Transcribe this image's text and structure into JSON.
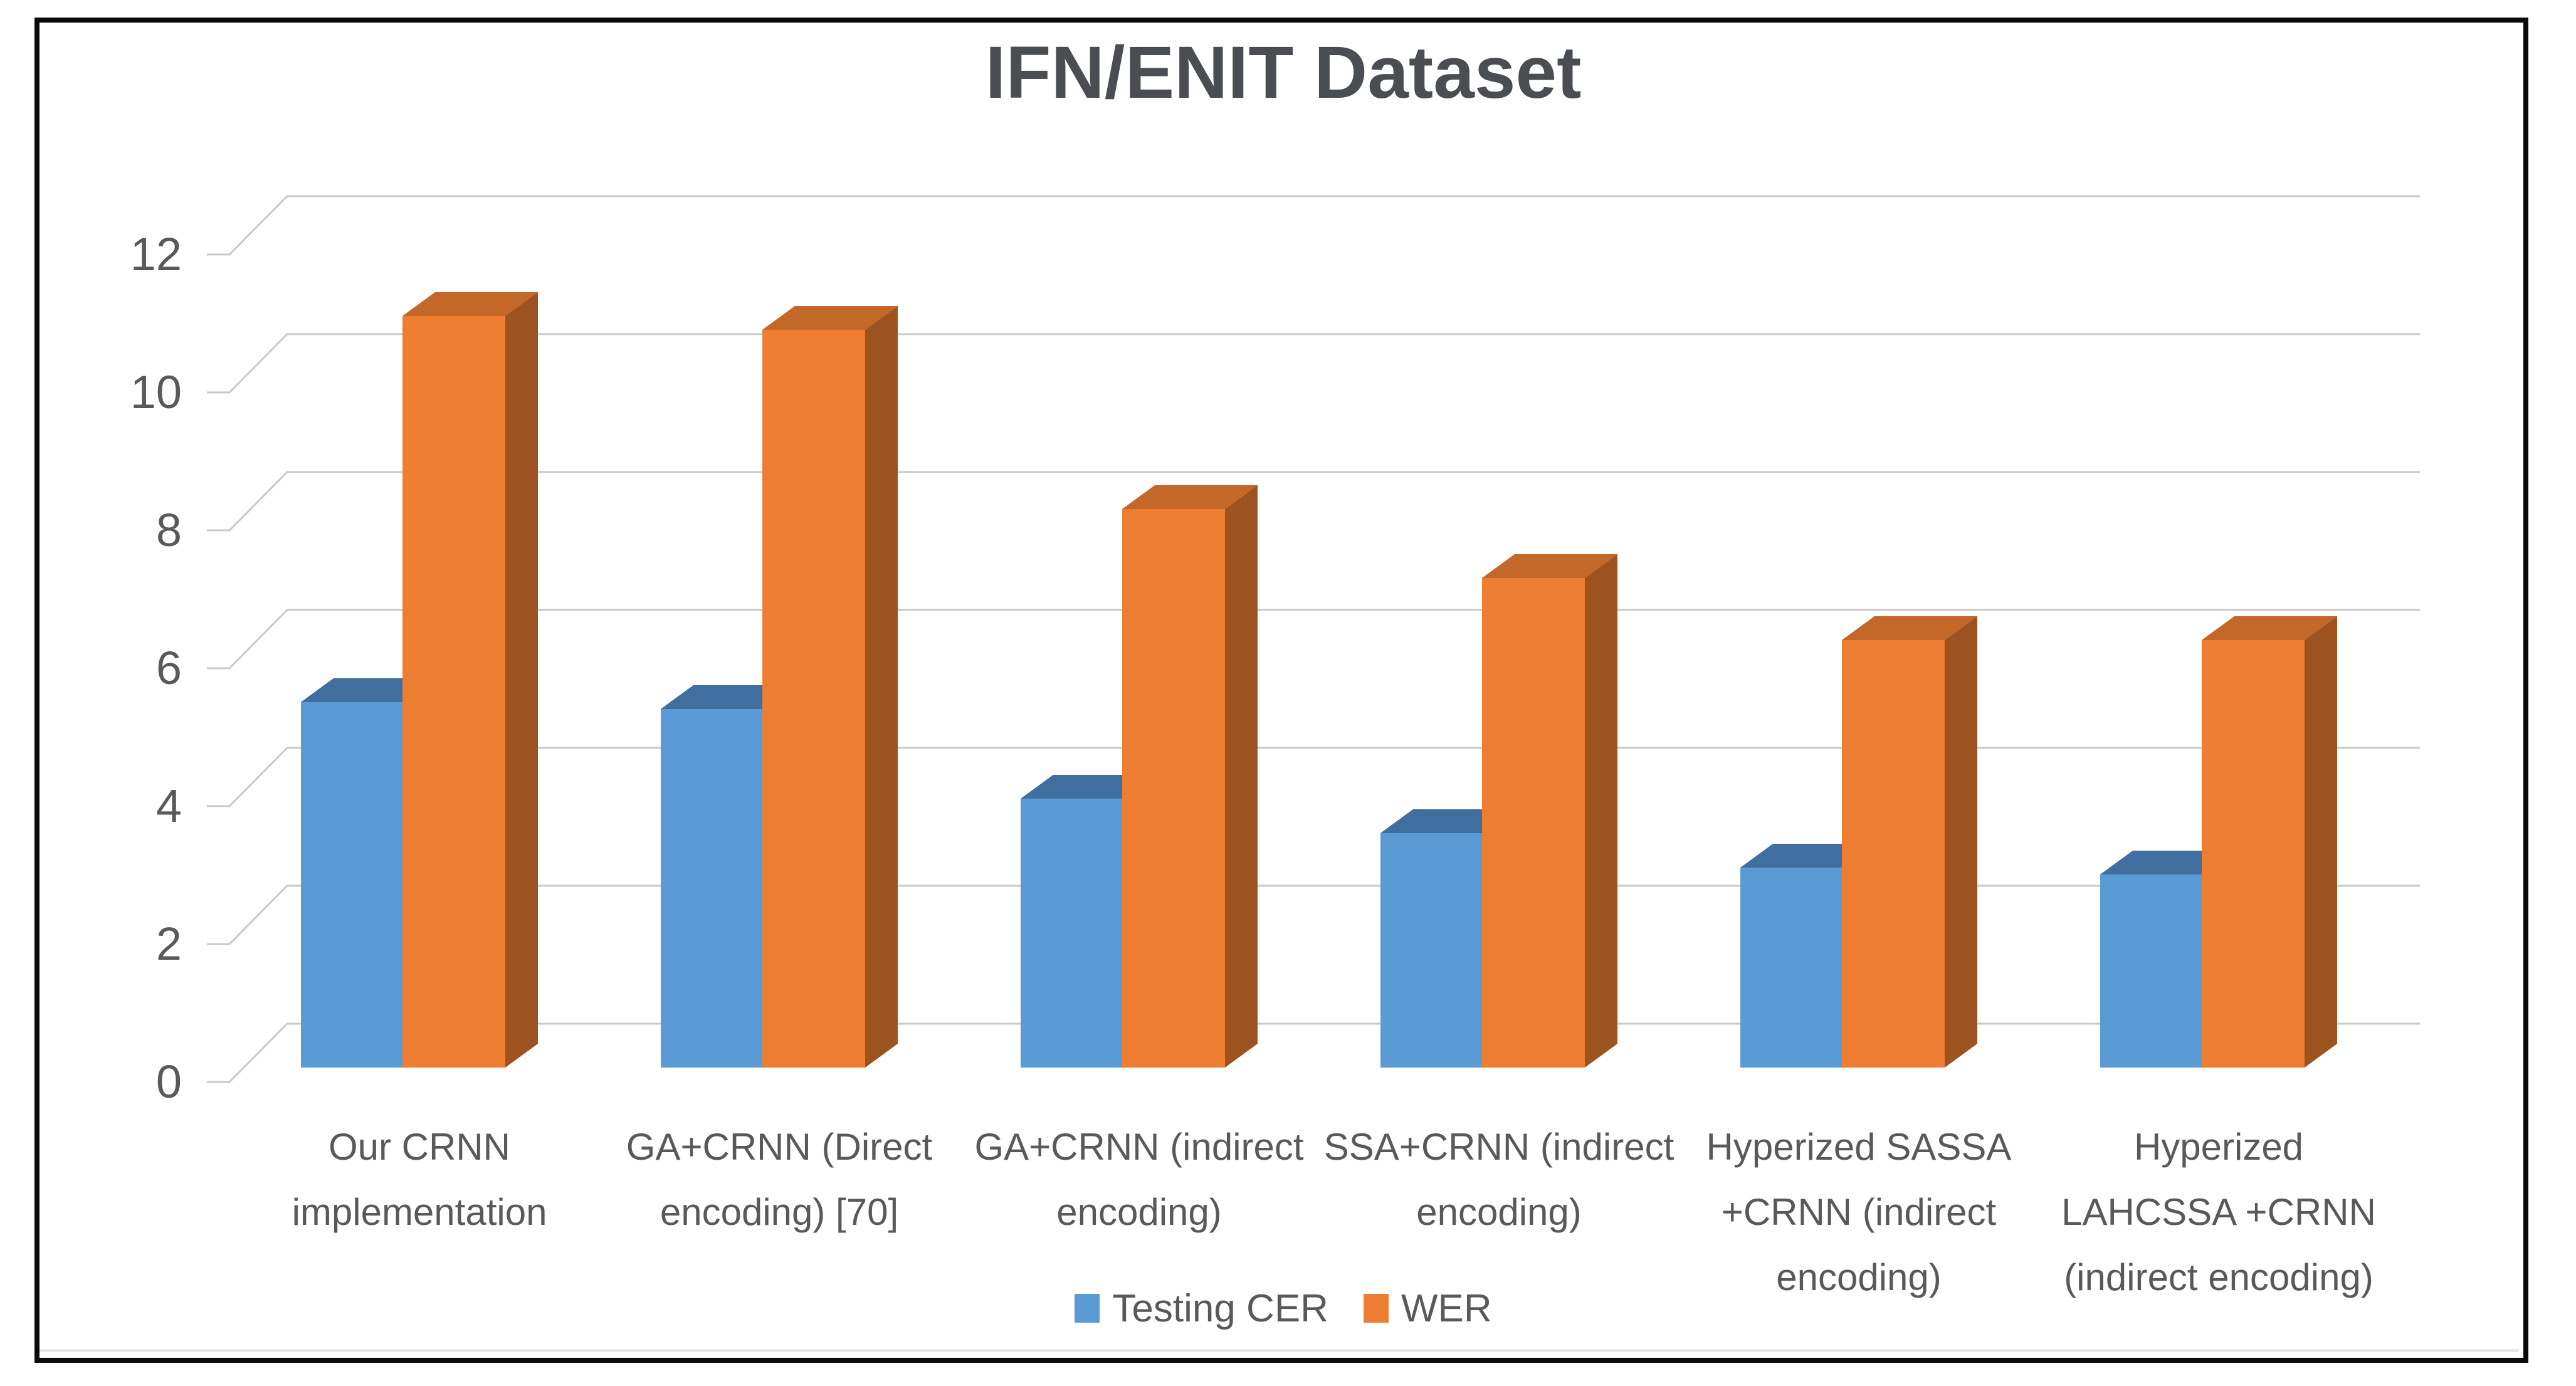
{
  "chart_data": {
    "type": "bar",
    "variant": "3d-clustered-column",
    "title": "IFN/ENIT Dataset",
    "categories": [
      "Our CRNN implementation",
      "GA+CRNN (Direct encoding) [70]",
      "GA+CRNN (indirect encoding)",
      "SSA+CRNN (indirect encoding)",
      "Hyperized SASSA +CRNN (indirect encoding)",
      "Hyperized LAHCSSA +CRNN (indirect encoding)"
    ],
    "series": [
      {
        "name": "Testing CER",
        "color": "#5b9bd5",
        "top_color": "#406f9f",
        "side_color": "#3d6a98",
        "values": [
          5.3,
          5.2,
          3.9,
          3.4,
          2.9,
          2.8
        ]
      },
      {
        "name": "WER",
        "color": "#ed7d31",
        "top_color": "#c4682a",
        "side_color": "#9c5320",
        "values": [
          10.9,
          10.7,
          8.1,
          7.1,
          6.2,
          6.2
        ]
      }
    ],
    "ylim": [
      0,
      12
    ],
    "ytick_step": 2,
    "ytick_labels": [
      "0",
      "2",
      "4",
      "6",
      "8",
      "10",
      "12"
    ],
    "grid": true,
    "legend_position": "bottom",
    "xlabel": "",
    "ylabel": ""
  },
  "styles": {
    "gridline_color": "#c9c9c9",
    "axis_text_color": "#595959",
    "title_color": "#4a4e53",
    "frame_border_color": "#0b0b0b"
  }
}
